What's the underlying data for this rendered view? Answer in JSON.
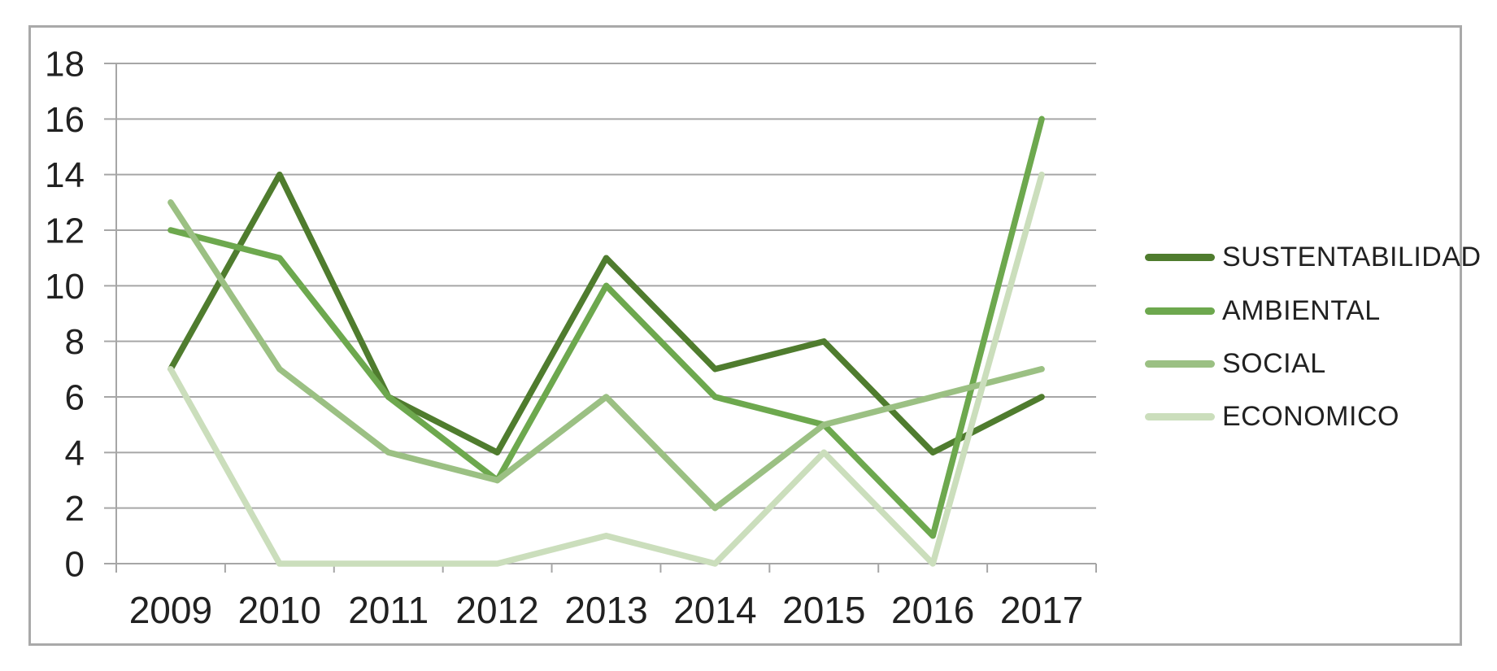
{
  "chart_data": {
    "type": "line",
    "title": "",
    "categories": [
      "2009",
      "2010",
      "2011",
      "2012",
      "2013",
      "2014",
      "2015",
      "2016",
      "2017"
    ],
    "series": [
      {
        "name": "SUSTENTABILIDAD",
        "color": "#4f7c2e",
        "values": [
          7,
          14,
          6,
          4,
          11,
          7,
          8,
          4,
          6
        ]
      },
      {
        "name": "AMBIENTAL",
        "color": "#6da84e",
        "values": [
          12,
          11,
          6,
          3,
          10,
          6,
          5,
          1,
          16
        ]
      },
      {
        "name": "SOCIAL",
        "color": "#9bc083",
        "values": [
          13,
          7,
          4,
          3,
          6,
          2,
          5,
          6,
          7
        ]
      },
      {
        "name": "ECONOMICO",
        "color": "#cbdebc",
        "values": [
          7,
          0,
          0,
          0,
          1,
          0,
          4,
          0,
          14
        ]
      }
    ],
    "xlabel": "",
    "ylabel": "",
    "ylim": [
      0,
      18
    ],
    "ytick_step": 2,
    "ytick_labels": [
      "0",
      "2",
      "4",
      "6",
      "8",
      "10",
      "12",
      "14",
      "16",
      "18"
    ],
    "grid": true,
    "legend_position": "right",
    "colors": {
      "grid_line": "#a6a6a6",
      "axis_line": "#a6a6a6",
      "frame_border": "#a9a9a9",
      "text": "#212121",
      "background": "#ffffff"
    }
  }
}
